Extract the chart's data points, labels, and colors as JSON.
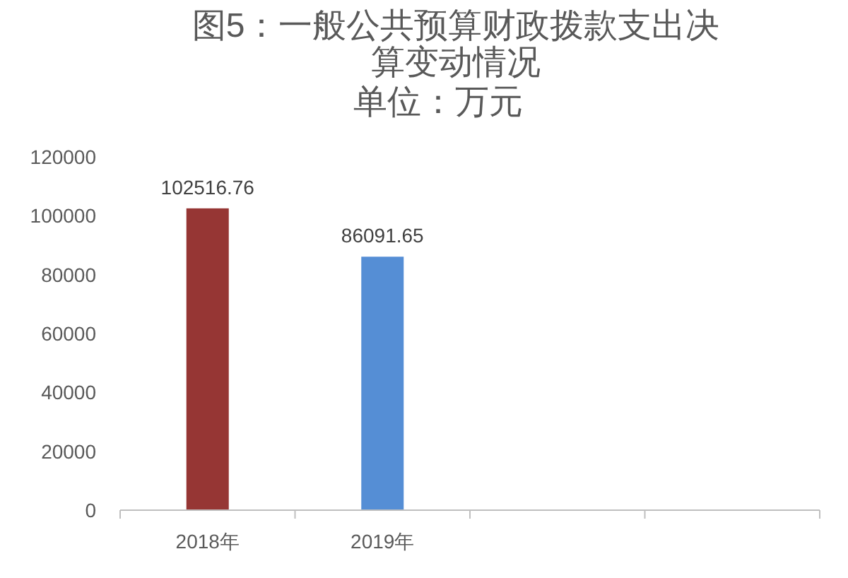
{
  "chart_data": {
    "type": "bar",
    "title": "图5：一般公共预算财政拨款支出决算变动情况",
    "subtitle": "单位：万元",
    "categories": [
      "2018年",
      "2019年",
      null,
      null
    ],
    "values": [
      102516.76,
      86091.65,
      null,
      null
    ],
    "colors": [
      "#963634",
      "#558ed5",
      null,
      null
    ],
    "ylim": [
      0,
      120000
    ],
    "yticks": [
      0,
      20000,
      40000,
      60000,
      80000,
      100000,
      120000
    ],
    "data_labels": true,
    "grid": false
  }
}
